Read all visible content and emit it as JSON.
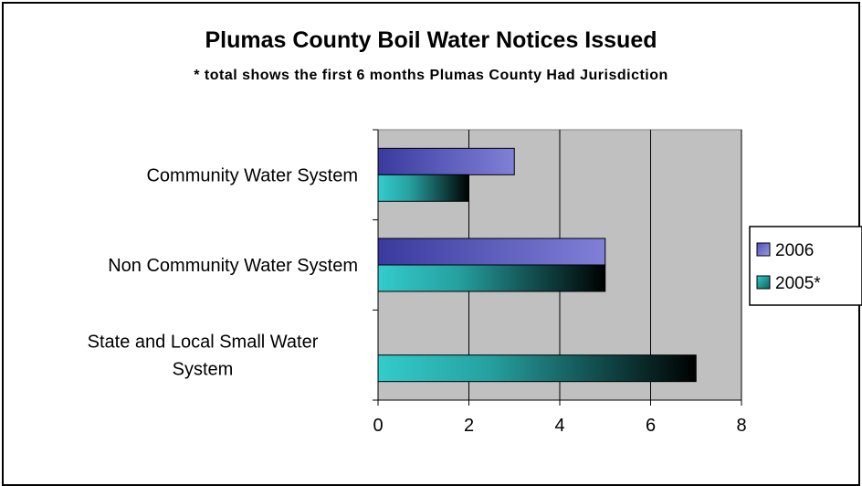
{
  "chart_data": {
    "type": "bar",
    "orientation": "horizontal",
    "title": "Plumas County Boil Water Notices Issued",
    "subtitle": "* total shows the first 6 months Plumas County Had Jurisdiction",
    "categories": [
      [
        "Community Water System"
      ],
      [
        "Non Community Water System"
      ],
      [
        "State and Local Small Water",
        "System"
      ]
    ],
    "series": [
      {
        "name": "2006",
        "values": [
          3,
          5,
          0
        ],
        "color": "#5c5cc4"
      },
      {
        "name": "2005*",
        "values": [
          2,
          5,
          7
        ],
        "color": "#33cccc"
      }
    ],
    "xlim": [
      0,
      8
    ],
    "xticks": [
      "0",
      "2",
      "4",
      "6",
      "8"
    ],
    "grid": true,
    "plot_background": "#c0c0c0",
    "legend_position": "right"
  }
}
